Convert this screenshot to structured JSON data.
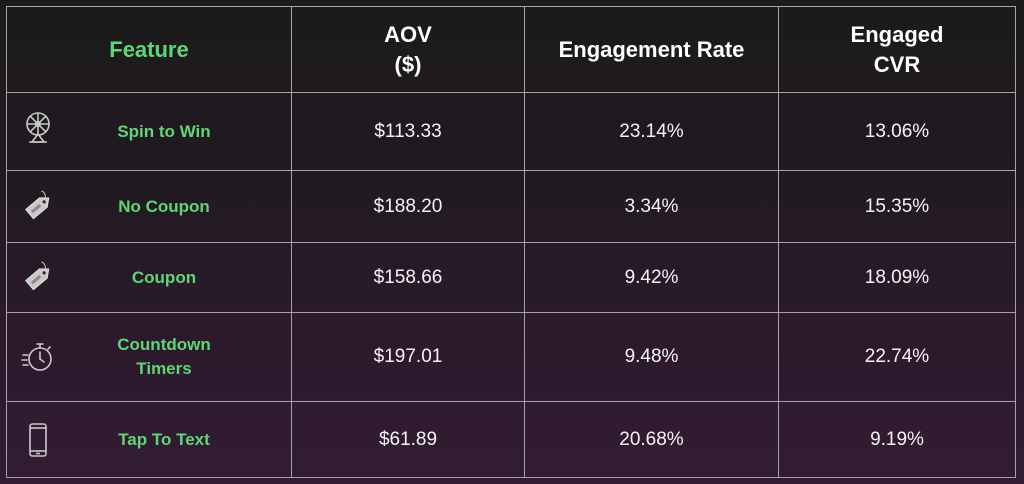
{
  "chart_data": {
    "type": "table",
    "headers": [
      [
        "Feature"
      ],
      [
        "AOV",
        "($)"
      ],
      [
        "Engagement Rate"
      ],
      [
        "Engaged",
        "CVR"
      ]
    ],
    "rows": [
      {
        "feature": "Spin to Win",
        "icon": "spin-wheel-icon",
        "aov": "$113.33",
        "engagement_rate": "23.14%",
        "engaged_cvr": "13.06%"
      },
      {
        "feature": "No Coupon",
        "icon": "price-tag-icon",
        "aov": "$188.20",
        "engagement_rate": "3.34%",
        "engaged_cvr": "15.35%"
      },
      {
        "feature": "Coupon",
        "icon": "price-tag-icon",
        "aov": "$158.66",
        "engagement_rate": "9.42%",
        "engaged_cvr": "18.09%"
      },
      {
        "feature": [
          "Countdown",
          "Timers"
        ],
        "icon": "stopwatch-icon",
        "aov": "$197.01",
        "engagement_rate": "9.48%",
        "engaged_cvr": "22.74%"
      },
      {
        "feature": "Tap To Text",
        "icon": "smartphone-icon",
        "aov": "$61.89",
        "engagement_rate": "20.68%",
        "engaged_cvr": "9.19%"
      }
    ],
    "colors": {
      "feature_text": "#5fd675",
      "header_text": "#ffffff",
      "value_text": "#f4f4f4",
      "grid": "#a7a2a7",
      "icon": "#c9c9c9"
    }
  }
}
